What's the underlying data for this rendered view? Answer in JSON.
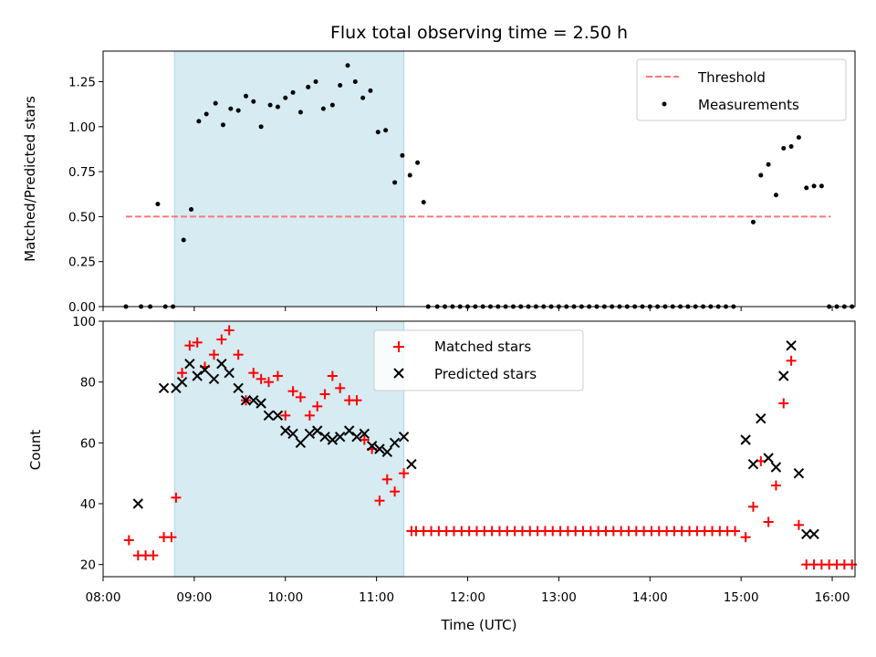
{
  "chart_data": [
    {
      "type": "scatter",
      "title": "Flux total observing time = 2.50 h",
      "xlabel": "",
      "ylabel": "Matched/Predicted stars",
      "xlim": [
        "08:00",
        "16:15"
      ],
      "ylim": [
        0,
        1.42
      ],
      "yticks": [
        "0.00",
        "0.25",
        "0.50",
        "0.75",
        "1.00",
        "1.25"
      ],
      "ytick_values": [
        0,
        0.25,
        0.5,
        0.75,
        1.0,
        1.25
      ],
      "grid": false,
      "legend": "top-right",
      "shaded_span": {
        "start": "08:47",
        "end": "11:18",
        "color": "#add8e6"
      },
      "threshold": {
        "name": "Threshold",
        "value": 0.5,
        "start": "08:15",
        "end": "15:59",
        "color": "#ff7777"
      },
      "series": [
        {
          "name": "Measurements",
          "color": "#000000",
          "points": [
            [
              "08:15",
              0
            ],
            [
              "08:25",
              0
            ],
            [
              "08:31",
              0
            ],
            [
              "08:36",
              0.57
            ],
            [
              "08:41",
              0
            ],
            [
              "08:46",
              0
            ],
            [
              "08:53",
              0.37
            ],
            [
              "08:58",
              0.54
            ],
            [
              "09:03",
              1.03
            ],
            [
              "09:08",
              1.07
            ],
            [
              "09:14",
              1.13
            ],
            [
              "09:19",
              1.01
            ],
            [
              "09:24",
              1.1
            ],
            [
              "09:29",
              1.09
            ],
            [
              "09:34",
              1.17
            ],
            [
              "09:39",
              1.14
            ],
            [
              "09:44",
              1.0
            ],
            [
              "09:50",
              1.12
            ],
            [
              "09:55",
              1.11
            ],
            [
              "10:00",
              1.16
            ],
            [
              "10:05",
              1.19
            ],
            [
              "10:10",
              1.08
            ],
            [
              "10:15",
              1.22
            ],
            [
              "10:20",
              1.25
            ],
            [
              "10:25",
              1.1
            ],
            [
              "10:31",
              1.12
            ],
            [
              "10:36",
              1.23
            ],
            [
              "10:41",
              1.34
            ],
            [
              "10:46",
              1.25
            ],
            [
              "10:51",
              1.16
            ],
            [
              "10:56",
              1.2
            ],
            [
              "11:01",
              0.97
            ],
            [
              "11:06",
              0.98
            ],
            [
              "11:12",
              0.69
            ],
            [
              "11:17",
              0.84
            ],
            [
              "11:22",
              0.73
            ],
            [
              "11:27",
              0.8
            ],
            [
              "11:31",
              0.58
            ],
            [
              "11:34",
              0
            ],
            [
              "11:40",
              0
            ],
            [
              "11:45",
              0
            ],
            [
              "11:50",
              0
            ],
            [
              "11:55",
              0
            ],
            [
              "12:00",
              0
            ],
            [
              "12:05",
              0
            ],
            [
              "12:10",
              0
            ],
            [
              "12:15",
              0
            ],
            [
              "12:20",
              0
            ],
            [
              "12:25",
              0
            ],
            [
              "12:30",
              0
            ],
            [
              "12:35",
              0
            ],
            [
              "12:40",
              0
            ],
            [
              "12:45",
              0
            ],
            [
              "12:50",
              0
            ],
            [
              "12:55",
              0
            ],
            [
              "13:00",
              0
            ],
            [
              "13:05",
              0
            ],
            [
              "13:10",
              0
            ],
            [
              "13:15",
              0
            ],
            [
              "13:20",
              0
            ],
            [
              "13:25",
              0
            ],
            [
              "13:30",
              0
            ],
            [
              "13:35",
              0
            ],
            [
              "13:40",
              0
            ],
            [
              "13:45",
              0
            ],
            [
              "13:50",
              0
            ],
            [
              "13:55",
              0
            ],
            [
              "14:00",
              0
            ],
            [
              "14:05",
              0
            ],
            [
              "14:10",
              0
            ],
            [
              "14:15",
              0
            ],
            [
              "14:20",
              0
            ],
            [
              "14:25",
              0
            ],
            [
              "14:30",
              0
            ],
            [
              "14:35",
              0
            ],
            [
              "14:40",
              0
            ],
            [
              "14:45",
              0
            ],
            [
              "14:50",
              0
            ],
            [
              "14:55",
              0
            ],
            [
              "15:08",
              0.47
            ],
            [
              "15:13",
              0.73
            ],
            [
              "15:18",
              0.79
            ],
            [
              "15:23",
              0.62
            ],
            [
              "15:28",
              0.88
            ],
            [
              "15:33",
              0.89
            ],
            [
              "15:38",
              0.94
            ],
            [
              "15:43",
              0.66
            ],
            [
              "15:48",
              0.67
            ],
            [
              "15:53",
              0.67
            ],
            [
              "15:58",
              0
            ],
            [
              "16:03",
              0
            ],
            [
              "16:08",
              0
            ],
            [
              "16:13",
              0
            ]
          ]
        }
      ]
    },
    {
      "type": "scatter",
      "title": "",
      "xlabel": "Time (UTC)",
      "ylabel": "Count",
      "xlim": [
        "08:00",
        "16:15"
      ],
      "ylim": [
        16,
        100
      ],
      "xticks": [
        "08:00",
        "09:00",
        "10:00",
        "11:00",
        "12:00",
        "13:00",
        "14:00",
        "15:00",
        "16:00"
      ],
      "yticks": [
        "20",
        "40",
        "60",
        "80",
        "100"
      ],
      "ytick_values": [
        20,
        40,
        60,
        80,
        100
      ],
      "grid": false,
      "legend": "top-center",
      "shaded_span": {
        "start": "08:47",
        "end": "11:18",
        "color": "#add8e6"
      },
      "series": [
        {
          "name": "Matched stars",
          "marker": "+",
          "color": "#ff0000",
          "points": [
            [
              "08:17",
              28
            ],
            [
              "08:23",
              23
            ],
            [
              "08:28",
              23
            ],
            [
              "08:33",
              23
            ],
            [
              "08:40",
              29
            ],
            [
              "08:45",
              29
            ],
            [
              "08:48",
              42
            ],
            [
              "08:52",
              83
            ],
            [
              "08:57",
              92
            ],
            [
              "09:02",
              93
            ],
            [
              "09:07",
              85
            ],
            [
              "09:13",
              89
            ],
            [
              "09:18",
              94
            ],
            [
              "09:23",
              97
            ],
            [
              "09:29",
              89
            ],
            [
              "09:34",
              74
            ],
            [
              "09:39",
              83
            ],
            [
              "09:44",
              81
            ],
            [
              "09:49",
              80
            ],
            [
              "09:55",
              82
            ],
            [
              "10:00",
              69
            ],
            [
              "10:05",
              77
            ],
            [
              "10:10",
              75
            ],
            [
              "10:16",
              69
            ],
            [
              "10:21",
              72
            ],
            [
              "10:26",
              76
            ],
            [
              "10:31",
              82
            ],
            [
              "10:36",
              78
            ],
            [
              "10:42",
              74
            ],
            [
              "10:47",
              74
            ],
            [
              "10:52",
              61
            ],
            [
              "10:57",
              58
            ],
            [
              "11:02",
              41
            ],
            [
              "11:07",
              48
            ],
            [
              "11:12",
              44
            ],
            [
              "11:18",
              50
            ],
            [
              "11:23",
              31
            ],
            [
              "11:26",
              31
            ],
            [
              "11:31",
              31
            ],
            [
              "11:36",
              31
            ],
            [
              "11:41",
              31
            ],
            [
              "11:46",
              31
            ],
            [
              "11:51",
              31
            ],
            [
              "11:56",
              31
            ],
            [
              "12:01",
              31
            ],
            [
              "12:06",
              31
            ],
            [
              "12:11",
              31
            ],
            [
              "12:16",
              31
            ],
            [
              "12:21",
              31
            ],
            [
              "12:26",
              31
            ],
            [
              "12:31",
              31
            ],
            [
              "12:36",
              31
            ],
            [
              "12:41",
              31
            ],
            [
              "12:46",
              31
            ],
            [
              "12:51",
              31
            ],
            [
              "12:56",
              31
            ],
            [
              "13:01",
              31
            ],
            [
              "13:06",
              31
            ],
            [
              "13:11",
              31
            ],
            [
              "13:16",
              31
            ],
            [
              "13:21",
              31
            ],
            [
              "13:26",
              31
            ],
            [
              "13:31",
              31
            ],
            [
              "13:36",
              31
            ],
            [
              "13:41",
              31
            ],
            [
              "13:46",
              31
            ],
            [
              "13:51",
              31
            ],
            [
              "13:56",
              31
            ],
            [
              "14:01",
              31
            ],
            [
              "14:06",
              31
            ],
            [
              "14:11",
              31
            ],
            [
              "14:16",
              31
            ],
            [
              "14:21",
              31
            ],
            [
              "14:26",
              31
            ],
            [
              "14:31",
              31
            ],
            [
              "14:36",
              31
            ],
            [
              "14:41",
              31
            ],
            [
              "14:46",
              31
            ],
            [
              "14:51",
              31
            ],
            [
              "14:56",
              31
            ],
            [
              "15:03",
              29
            ],
            [
              "15:08",
              39
            ],
            [
              "15:13",
              54
            ],
            [
              "15:18",
              34
            ],
            [
              "15:23",
              46
            ],
            [
              "15:28",
              73
            ],
            [
              "15:33",
              87
            ],
            [
              "15:38",
              33
            ],
            [
              "15:43",
              20
            ],
            [
              "15:48",
              20
            ],
            [
              "15:53",
              20
            ],
            [
              "15:58",
              20
            ],
            [
              "16:03",
              20
            ],
            [
              "16:08",
              20
            ],
            [
              "16:13",
              20
            ]
          ]
        },
        {
          "name": "Predicted stars",
          "marker": "x",
          "color": "#000000",
          "points": [
            [
              "08:23",
              40
            ],
            [
              "08:40",
              78
            ],
            [
              "08:48",
              78
            ],
            [
              "08:52",
              80
            ],
            [
              "08:57",
              86
            ],
            [
              "09:02",
              82
            ],
            [
              "09:07",
              84
            ],
            [
              "09:13",
              81
            ],
            [
              "09:18",
              86
            ],
            [
              "09:23",
              83
            ],
            [
              "09:29",
              78
            ],
            [
              "09:34",
              74
            ],
            [
              "09:39",
              74
            ],
            [
              "09:44",
              73
            ],
            [
              "09:49",
              69
            ],
            [
              "09:55",
              69
            ],
            [
              "10:00",
              64
            ],
            [
              "10:05",
              63
            ],
            [
              "10:10",
              60
            ],
            [
              "10:16",
              63
            ],
            [
              "10:21",
              64
            ],
            [
              "10:26",
              62
            ],
            [
              "10:31",
              61
            ],
            [
              "10:36",
              62
            ],
            [
              "10:42",
              64
            ],
            [
              "10:47",
              62
            ],
            [
              "10:52",
              63
            ],
            [
              "10:57",
              59
            ],
            [
              "11:02",
              58
            ],
            [
              "11:07",
              57
            ],
            [
              "11:12",
              60
            ],
            [
              "11:18",
              62
            ],
            [
              "11:23",
              53
            ],
            [
              "15:03",
              61
            ],
            [
              "15:08",
              53
            ],
            [
              "15:13",
              68
            ],
            [
              "15:18",
              55
            ],
            [
              "15:23",
              52
            ],
            [
              "15:28",
              82
            ],
            [
              "15:33",
              92
            ],
            [
              "15:38",
              50
            ],
            [
              "15:43",
              30
            ],
            [
              "15:48",
              30
            ]
          ]
        }
      ]
    }
  ]
}
